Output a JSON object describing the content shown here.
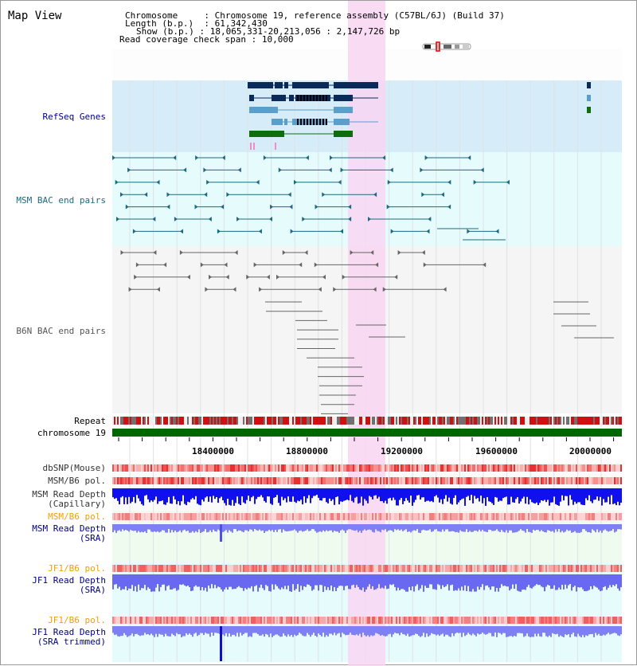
{
  "title": "Map View",
  "info": {
    "chromosome_label": "Chromosome",
    "chromosome_value": "Chromosome 19, reference assembly (C57BL/6J) (Build 37)",
    "length_label": "Length (b.p.)",
    "length_value": "61,342,430",
    "show_label": "Show (b.p.)",
    "show_value": "18,065,331-20,213,056 : 2,147,726 bp",
    "span_label": "Read coverage check span",
    "span_value": "10,000"
  },
  "tracks": {
    "refseq": "RefSeq Genes",
    "msm_bac": "MSM BAC end pairs",
    "b6n_bac": "B6N BAC end pairs",
    "repeat": "Repeat",
    "chromosome": "chromosome 19",
    "dbsnp": "dbSNP(Mouse)",
    "msm_b6_pol": "MSM/B6 pol.",
    "msm_cap_1": "MSM Read Depth",
    "msm_cap_2": "(Capillary)",
    "msm_b6_pol2": "MSM/B6 pol.",
    "msm_sra_1": "MSM Read Depth",
    "msm_sra_2": "(SRA)",
    "jf1_b6_pol": "JF1/B6 pol.",
    "jf1_sra_1": "JF1 Read Depth",
    "jf1_sra_2": "(SRA)",
    "jf1_b6_pol2": "JF1/B6 pol.",
    "jf1_trim_1": "JF1 Read Depth",
    "jf1_trim_2": "(SRA trimmed)"
  },
  "axis_ticks": [
    "18400000",
    "18800000",
    "19200000",
    "19600000",
    "20000000"
  ],
  "colors": {
    "refseq_bg": "#d6ecf8",
    "msm_bg": "#e6fbfb",
    "b6n_bg": "#f5f5f5",
    "highlight": "#f8d6f2",
    "navy": "#0a2a5a",
    "blue_gene": "#5a9ecc",
    "green_gene": "#0e6e0e",
    "teal": "#1d6a80",
    "gray": "#666666",
    "chromosome": "#006600",
    "depth_dark": "#1010ee",
    "depth_light": "#8080f5",
    "label_navy": "#000080",
    "label_orange": "#f0a000"
  }
}
